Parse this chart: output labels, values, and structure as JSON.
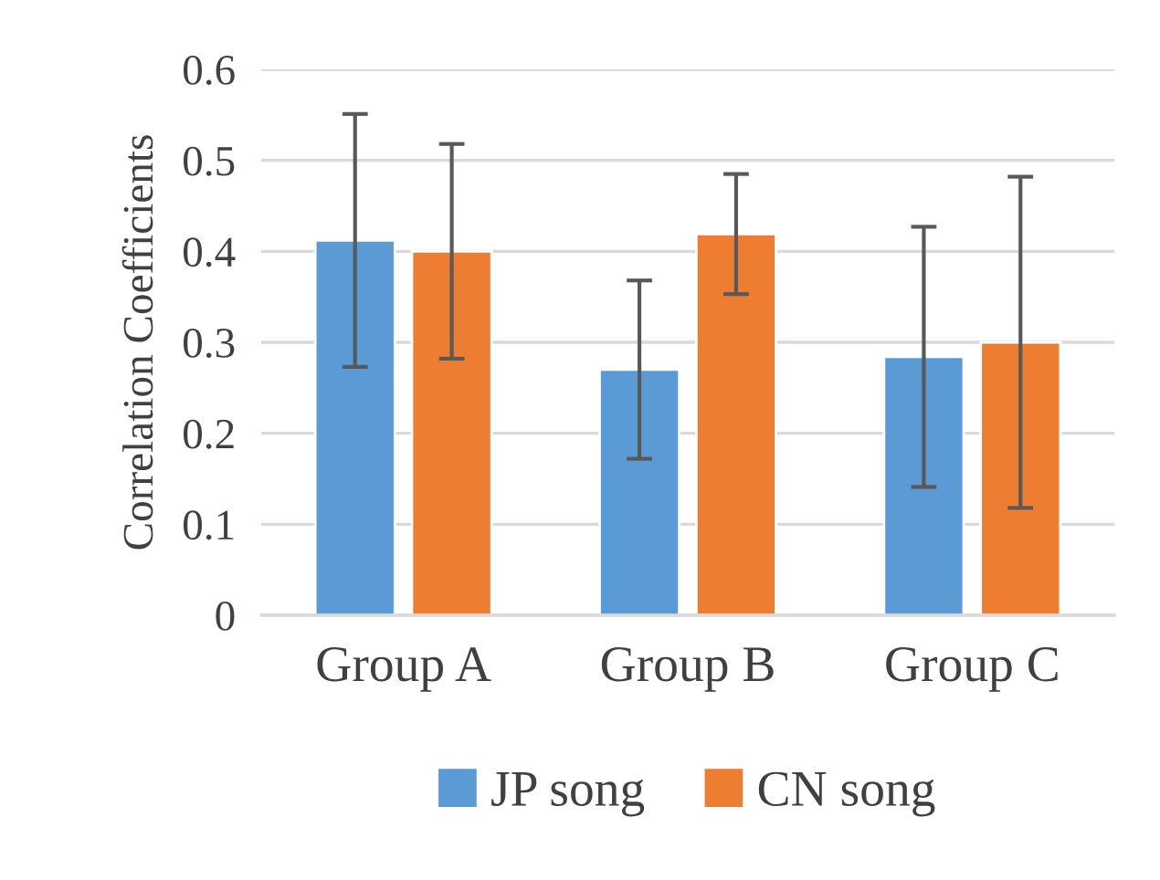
{
  "chart_data": {
    "type": "bar",
    "ylabel": "Correlation Coefficients",
    "categories": [
      "Group A",
      "Group B",
      "Group C"
    ],
    "series": [
      {
        "name": "JP song",
        "color": "#5b9bd5",
        "values": [
          0.412,
          0.27,
          0.284
        ],
        "errors": [
          0.139,
          0.098,
          0.143
        ]
      },
      {
        "name": "CN song",
        "color": "#ed7d31",
        "values": [
          0.4,
          0.419,
          0.3
        ],
        "errors": [
          0.118,
          0.066,
          0.182
        ]
      }
    ],
    "ylim": [
      0,
      0.6
    ],
    "yticks": [
      0,
      0.1,
      0.2,
      0.3,
      0.4,
      0.5,
      0.6
    ],
    "grid": "y",
    "legend": "bottom"
  }
}
